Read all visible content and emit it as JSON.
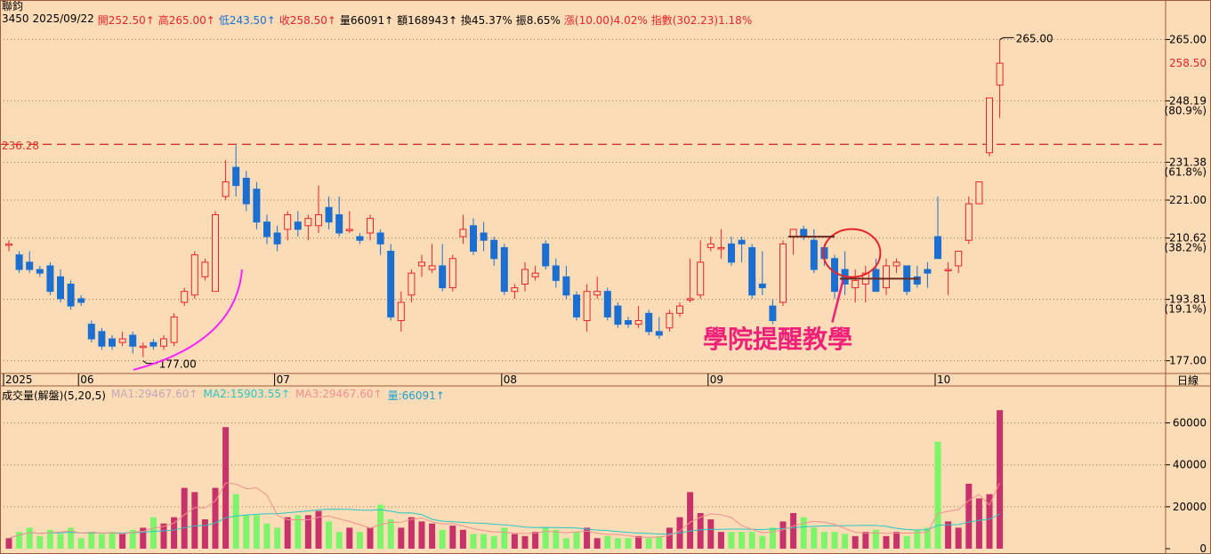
{
  "window": {
    "title": "聯鈞",
    "bottom_right_label": "日線"
  },
  "header": {
    "code": "3450",
    "date": "2025/09/22",
    "open": "開252.50↑",
    "high": "高265.00↑",
    "low": "低243.50↑",
    "close": "收258.50↑",
    "volume": "量66091↑",
    "amount": "額168943↑",
    "turnover": "換45.37%",
    "amplitude": "振8.65%",
    "change": "漲(10.00)4.02%",
    "index": "指數(302.23)1.18%"
  },
  "annotation": {
    "text": "學院提醒教學"
  },
  "price_axis": {
    "ticks": [
      "265.00",
      "258.50",
      "248.19",
      "(80.9%)",
      "231.38",
      "(61.8%)",
      "221.00",
      "210.62",
      "(38.2%)",
      "193.81",
      "(19.1%)",
      "177.00"
    ]
  },
  "volume_panel": {
    "title": "成交量(解盤)(5,20,5)",
    "ma1": "MA1:29467.60↑",
    "ma2": "MA2:15903.55↑",
    "ma3": "MA3:29467.60↑",
    "vol": "量:66091↑",
    "ticks": [
      "60000",
      "40000",
      "20000",
      "0"
    ]
  },
  "colors": {
    "background": "#fcdcb6",
    "up": "#e8232c",
    "down": "#1a6fd1",
    "vol_up": "#c8326a",
    "vol_down": "#7cf56b",
    "vol_blue": "#1a6fd1",
    "ma_cyan": "#27c7c4",
    "ma_pink": "#f29090",
    "ref_line": "#d9342b",
    "arc": "#ff20ff",
    "circle": "#e8232c",
    "annotation": "#f0207a",
    "grid": "#a07050"
  },
  "chart_data": {
    "type": "candlestick",
    "title": "",
    "xlabel": "",
    "ylabel": "",
    "x_labels": [
      "2025",
      "06",
      "07",
      "08",
      "09",
      "10"
    ],
    "ylim": [
      174,
      269
    ],
    "reference_line": 236.28,
    "reference_label": "236.28",
    "low_marker": 177.0,
    "low_label": "177.00",
    "high_marker": 265.0,
    "high_label": "265.00",
    "candles": [
      {
        "o": 209,
        "h": 210,
        "l": 207,
        "c": 209,
        "v": 5000
      },
      {
        "o": 206,
        "h": 207,
        "l": 201,
        "c": 202,
        "v": 8000
      },
      {
        "o": 204,
        "h": 207,
        "l": 201,
        "c": 202,
        "v": 10000
      },
      {
        "o": 202,
        "h": 203,
        "l": 200,
        "c": 201,
        "v": 6000
      },
      {
        "o": 203,
        "h": 204,
        "l": 195,
        "c": 196,
        "v": 9000
      },
      {
        "o": 200,
        "h": 202,
        "l": 193,
        "c": 194,
        "v": 7000
      },
      {
        "o": 198,
        "h": 199,
        "l": 191,
        "c": 192,
        "v": 10000
      },
      {
        "o": 194,
        "h": 195,
        "l": 192,
        "c": 193,
        "v": 5000
      },
      {
        "o": 187,
        "h": 188,
        "l": 182,
        "c": 183,
        "v": 8000
      },
      {
        "o": 185,
        "h": 186,
        "l": 180,
        "c": 181,
        "v": 7000
      },
      {
        "o": 183,
        "h": 184,
        "l": 180,
        "c": 181,
        "v": 8000
      },
      {
        "o": 182,
        "h": 185,
        "l": 181,
        "c": 183,
        "v": 7000
      },
      {
        "o": 184,
        "h": 185,
        "l": 179,
        "c": 181,
        "v": 9000
      },
      {
        "o": 181,
        "h": 182,
        "l": 178,
        "c": 181,
        "v": 10000
      },
      {
        "o": 182,
        "h": 183,
        "l": 180,
        "c": 181,
        "v": 15000
      },
      {
        "o": 181,
        "h": 184,
        "l": 180,
        "c": 183,
        "v": 12000
      },
      {
        "o": 182,
        "h": 190,
        "l": 181,
        "c": 189,
        "v": 15000
      },
      {
        "o": 193,
        "h": 197,
        "l": 192,
        "c": 196,
        "v": 29000
      },
      {
        "o": 195,
        "h": 207,
        "l": 194,
        "c": 206,
        "v": 27000
      },
      {
        "o": 200,
        "h": 205,
        "l": 199,
        "c": 204,
        "v": 14000
      },
      {
        "o": 196,
        "h": 218,
        "l": 196,
        "c": 217,
        "v": 29000
      },
      {
        "o": 222,
        "h": 232,
        "l": 221,
        "c": 226,
        "v": 58000
      },
      {
        "o": 230,
        "h": 236,
        "l": 222,
        "c": 225,
        "v": 26000
      },
      {
        "o": 227,
        "h": 229,
        "l": 218,
        "c": 220,
        "v": 16000
      },
      {
        "o": 224,
        "h": 226,
        "l": 213,
        "c": 215,
        "v": 16000
      },
      {
        "o": 215,
        "h": 217,
        "l": 209,
        "c": 211,
        "v": 12000
      },
      {
        "o": 212,
        "h": 214,
        "l": 207,
        "c": 209,
        "v": 10000
      },
      {
        "o": 213,
        "h": 218,
        "l": 210,
        "c": 217,
        "v": 15000
      },
      {
        "o": 215,
        "h": 218,
        "l": 211,
        "c": 213,
        "v": 16000
      },
      {
        "o": 214,
        "h": 217,
        "l": 210,
        "c": 216,
        "v": 16000
      },
      {
        "o": 214,
        "h": 225,
        "l": 212,
        "c": 217,
        "v": 18000
      },
      {
        "o": 219,
        "h": 222,
        "l": 213,
        "c": 215,
        "v": 13000
      },
      {
        "o": 217,
        "h": 222,
        "l": 211,
        "c": 212,
        "v": 8000
      },
      {
        "o": 213,
        "h": 218,
        "l": 212,
        "c": 213,
        "v": 10000
      },
      {
        "o": 211,
        "h": 212,
        "l": 209,
        "c": 210,
        "v": 8000
      },
      {
        "o": 212,
        "h": 217,
        "l": 210,
        "c": 216,
        "v": 10000
      },
      {
        "o": 212,
        "h": 213,
        "l": 206,
        "c": 209,
        "v": 21000
      },
      {
        "o": 207,
        "h": 209,
        "l": 188,
        "c": 189,
        "v": 14000
      },
      {
        "o": 188,
        "h": 196,
        "l": 185,
        "c": 193,
        "v": 10000
      },
      {
        "o": 195,
        "h": 202,
        "l": 193,
        "c": 201,
        "v": 15000
      },
      {
        "o": 203,
        "h": 206,
        "l": 200,
        "c": 204,
        "v": 13000
      },
      {
        "o": 202,
        "h": 209,
        "l": 201,
        "c": 203,
        "v": 12000
      },
      {
        "o": 203,
        "h": 209,
        "l": 196,
        "c": 197,
        "v": 9000
      },
      {
        "o": 197,
        "h": 206,
        "l": 196,
        "c": 205,
        "v": 11000
      },
      {
        "o": 211,
        "h": 217,
        "l": 209,
        "c": 213,
        "v": 9000
      },
      {
        "o": 214,
        "h": 216,
        "l": 206,
        "c": 207,
        "v": 7000
      },
      {
        "o": 212,
        "h": 215,
        "l": 207,
        "c": 210,
        "v": 7000
      },
      {
        "o": 210,
        "h": 211,
        "l": 203,
        "c": 205,
        "v": 6000
      },
      {
        "o": 208,
        "h": 209,
        "l": 195,
        "c": 196,
        "v": 10000
      },
      {
        "o": 196,
        "h": 198,
        "l": 194,
        "c": 197,
        "v": 7000
      },
      {
        "o": 198,
        "h": 204,
        "l": 196,
        "c": 202,
        "v": 6000
      },
      {
        "o": 200,
        "h": 203,
        "l": 199,
        "c": 201,
        "v": 8000
      },
      {
        "o": 209,
        "h": 210,
        "l": 202,
        "c": 203,
        "v": 10000
      },
      {
        "o": 203,
        "h": 205,
        "l": 197,
        "c": 199,
        "v": 9000
      },
      {
        "o": 200,
        "h": 203,
        "l": 194,
        "c": 195,
        "v": 5000
      },
      {
        "o": 195,
        "h": 196,
        "l": 188,
        "c": 189,
        "v": 8000
      },
      {
        "o": 188,
        "h": 198,
        "l": 185,
        "c": 196,
        "v": 10000
      },
      {
        "o": 195,
        "h": 200,
        "l": 194,
        "c": 196,
        "v": 5000
      },
      {
        "o": 196,
        "h": 197,
        "l": 188,
        "c": 189,
        "v": 6000
      },
      {
        "o": 192,
        "h": 193,
        "l": 186,
        "c": 187,
        "v": 5000
      },
      {
        "o": 188,
        "h": 189,
        "l": 186,
        "c": 187,
        "v": 5000
      },
      {
        "o": 187,
        "h": 192,
        "l": 186,
        "c": 188,
        "v": 6000
      },
      {
        "o": 190,
        "h": 191,
        "l": 184,
        "c": 185,
        "v": 5000
      },
      {
        "o": 185,
        "h": 189,
        "l": 183,
        "c": 184,
        "v": 6000
      },
      {
        "o": 186,
        "h": 191,
        "l": 185,
        "c": 190,
        "v": 10000
      },
      {
        "o": 190,
        "h": 193,
        "l": 189,
        "c": 192,
        "v": 15000
      },
      {
        "o": 194,
        "h": 205,
        "l": 193,
        "c": 194,
        "v": 27000
      },
      {
        "o": 195,
        "h": 210,
        "l": 194,
        "c": 204,
        "v": 17000
      },
      {
        "o": 208,
        "h": 211,
        "l": 207,
        "c": 209,
        "v": 14000
      },
      {
        "o": 208,
        "h": 213,
        "l": 205,
        "c": 208,
        "v": 8000
      },
      {
        "o": 209,
        "h": 211,
        "l": 203,
        "c": 204,
        "v": 8000
      },
      {
        "o": 210,
        "h": 211,
        "l": 204,
        "c": 209,
        "v": 8000
      },
      {
        "o": 208,
        "h": 209,
        "l": 194,
        "c": 195,
        "v": 8000
      },
      {
        "o": 198,
        "h": 207,
        "l": 195,
        "c": 197,
        "v": 6000
      },
      {
        "o": 192,
        "h": 194,
        "l": 187,
        "c": 188,
        "v": 10000
      },
      {
        "o": 193,
        "h": 210,
        "l": 192,
        "c": 209,
        "v": 13000
      },
      {
        "o": 211,
        "h": 213,
        "l": 206,
        "c": 213,
        "v": 17000
      },
      {
        "o": 213,
        "h": 214,
        "l": 210,
        "c": 211,
        "v": 15000
      },
      {
        "o": 210,
        "h": 213,
        "l": 201,
        "c": 202,
        "v": 10000
      },
      {
        "o": 208,
        "h": 209,
        "l": 203,
        "c": 205,
        "v": 8000
      },
      {
        "o": 205,
        "h": 206,
        "l": 194,
        "c": 196,
        "v": 8000
      },
      {
        "o": 202,
        "h": 207,
        "l": 195,
        "c": 198,
        "v": 7000
      },
      {
        "o": 197,
        "h": 202,
        "l": 193,
        "c": 199,
        "v": 6000
      },
      {
        "o": 198,
        "h": 203,
        "l": 193,
        "c": 201,
        "v": 8000
      },
      {
        "o": 202,
        "h": 205,
        "l": 196,
        "c": 196,
        "v": 9000
      },
      {
        "o": 197,
        "h": 205,
        "l": 195,
        "c": 203,
        "v": 6000
      },
      {
        "o": 203,
        "h": 205,
        "l": 201,
        "c": 204,
        "v": 8000
      },
      {
        "o": 203,
        "h": 203,
        "l": 195,
        "c": 196,
        "v": 6000
      },
      {
        "o": 200,
        "h": 203,
        "l": 197,
        "c": 198,
        "v": 9000
      },
      {
        "o": 202,
        "h": 204,
        "l": 197,
        "c": 201,
        "v": 10000
      },
      {
        "o": 211,
        "h": 222,
        "l": 205,
        "c": 205,
        "v": 51000
      },
      {
        "o": 202,
        "h": 204,
        "l": 195,
        "c": 202,
        "v": 13000
      },
      {
        "o": 203,
        "h": 207,
        "l": 201,
        "c": 207,
        "v": 10000
      },
      {
        "o": 210,
        "h": 222,
        "l": 209,
        "c": 220,
        "v": 31000
      },
      {
        "o": 220,
        "h": 226,
        "l": 220,
        "c": 226,
        "v": 24000
      },
      {
        "o": 234,
        "h": 249,
        "l": 233,
        "c": 249,
        "v": 26000
      },
      {
        "o": 252.5,
        "h": 265,
        "l": 243.5,
        "c": 258.5,
        "v": 66091
      }
    ]
  }
}
